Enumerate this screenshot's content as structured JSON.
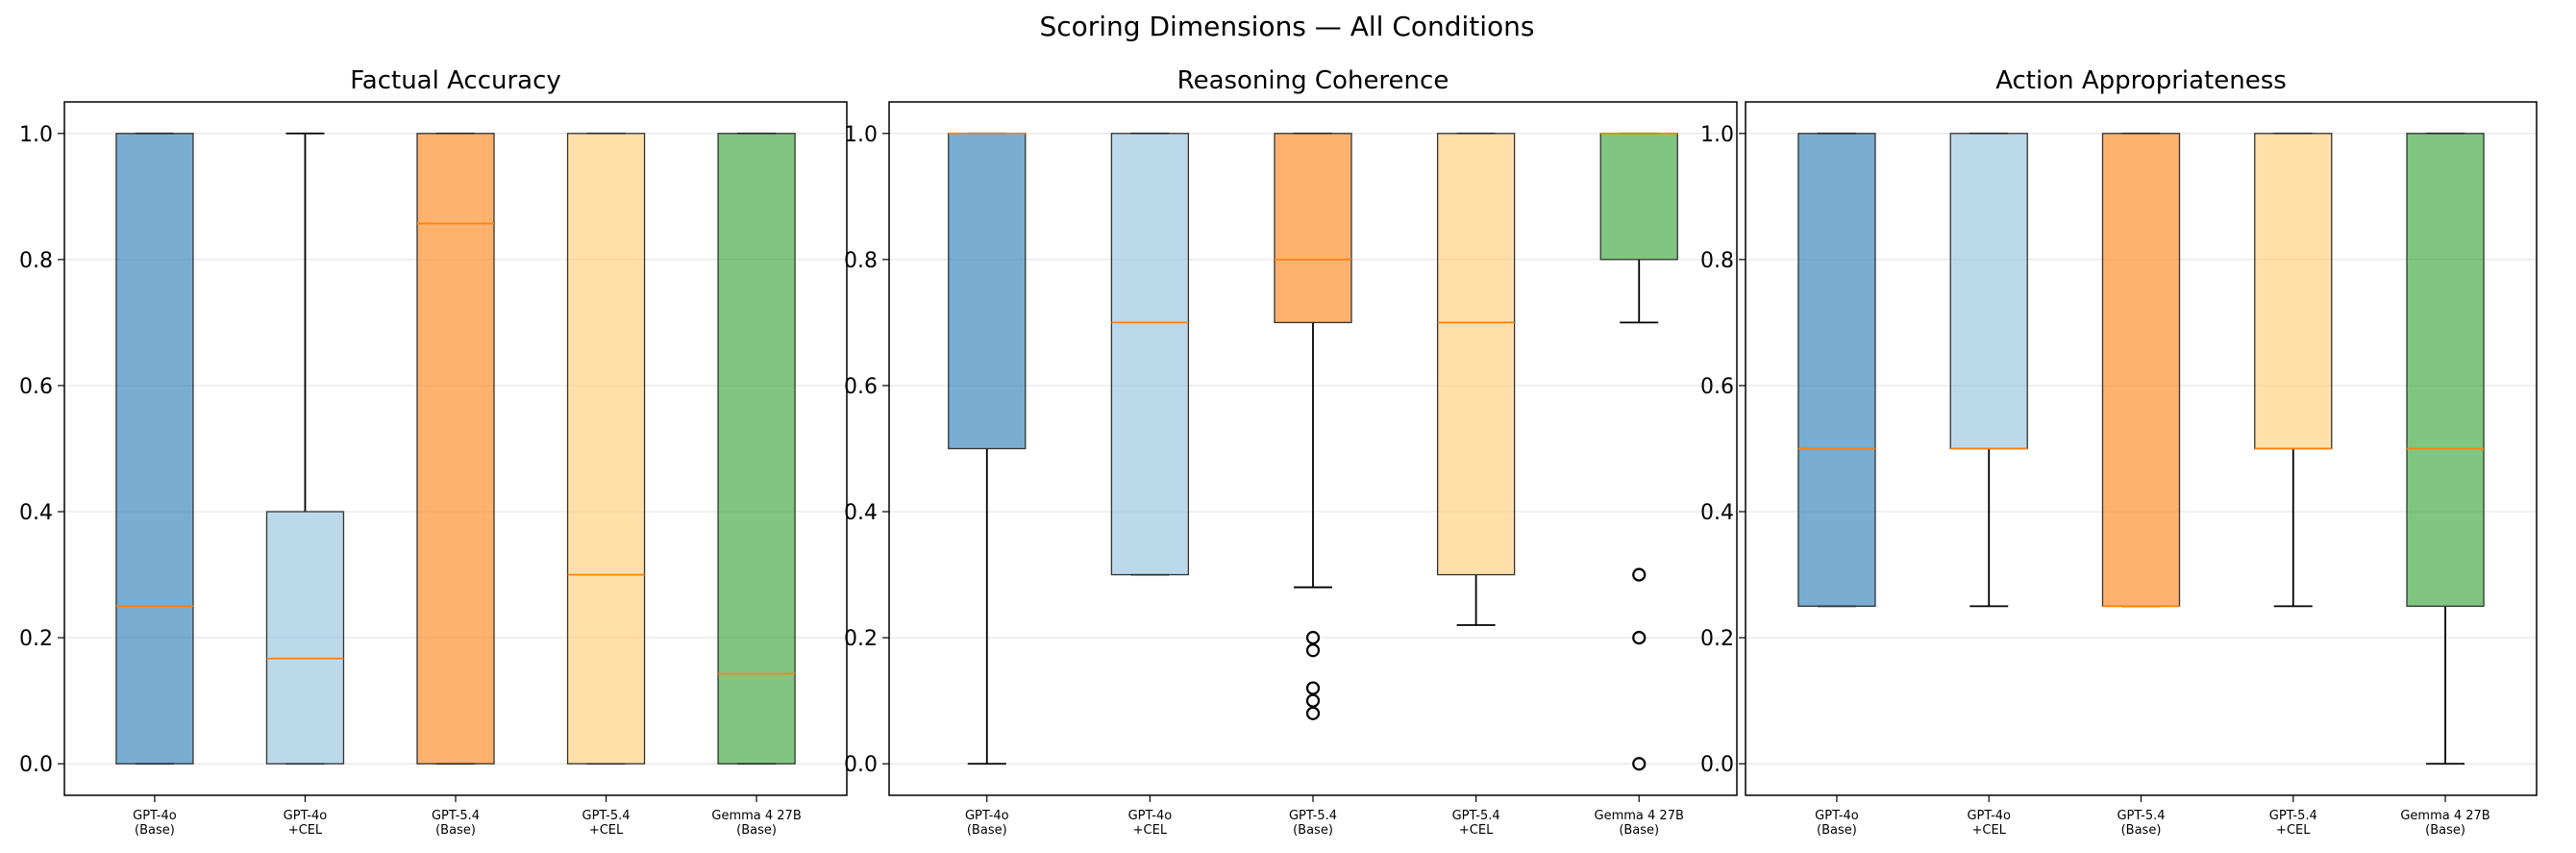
{
  "figure": {
    "title": "Scoring Dimensions — All Conditions"
  },
  "palette": [
    "#1f77b4",
    "#8fbfe0",
    "#ff7f0e",
    "#ffcc70",
    "#2ca02c"
  ],
  "median_color": "#ff7f0e",
  "chart_data": [
    {
      "type": "box",
      "title": "Factual Accuracy",
      "categories": [
        "GPT-4o\n(Base)",
        "GPT-4o\n+CEL",
        "GPT-5.4\n(Base)",
        "GPT-5.4\n+CEL",
        "Gemma 4 27B\n(Base)"
      ],
      "yticks": [
        "0.0",
        "0.2",
        "0.4",
        "0.6",
        "0.8",
        "1.0"
      ],
      "ylim": [
        -0.05,
        1.05
      ],
      "grid": true,
      "boxes": [
        {
          "whislo": 0.0,
          "q1": 0.0,
          "med": 0.25,
          "q3": 1.0,
          "whishi": 1.0,
          "fliers": []
        },
        {
          "whislo": 0.0,
          "q1": 0.0,
          "med": 0.167,
          "q3": 0.4,
          "whishi": 1.0,
          "fliers": []
        },
        {
          "whislo": 0.0,
          "q1": 0.0,
          "med": 0.857,
          "q3": 1.0,
          "whishi": 1.0,
          "fliers": []
        },
        {
          "whislo": 0.0,
          "q1": 0.0,
          "med": 0.3,
          "q3": 1.0,
          "whishi": 1.0,
          "fliers": []
        },
        {
          "whislo": 0.0,
          "q1": 0.0,
          "med": 0.143,
          "q3": 1.0,
          "whishi": 1.0,
          "fliers": []
        }
      ]
    },
    {
      "type": "box",
      "title": "Reasoning Coherence",
      "categories": [
        "GPT-4o\n(Base)",
        "GPT-4o\n+CEL",
        "GPT-5.4\n(Base)",
        "GPT-5.4\n+CEL",
        "Gemma 4 27B\n(Base)"
      ],
      "yticks": [
        "0.0",
        "0.2",
        "0.4",
        "0.6",
        "0.8",
        "1.0"
      ],
      "ylim": [
        -0.05,
        1.05
      ],
      "grid": true,
      "boxes": [
        {
          "whislo": 0.0,
          "q1": 0.5,
          "med": 1.0,
          "q3": 1.0,
          "whishi": 1.0,
          "fliers": []
        },
        {
          "whislo": 0.3,
          "q1": 0.3,
          "med": 0.7,
          "q3": 1.0,
          "whishi": 1.0,
          "fliers": []
        },
        {
          "whislo": 0.28,
          "q1": 0.7,
          "med": 0.8,
          "q3": 1.0,
          "whishi": 1.0,
          "fliers": [
            0.2,
            0.18,
            0.12,
            0.1,
            0.08
          ]
        },
        {
          "whislo": 0.22,
          "q1": 0.3,
          "med": 0.7,
          "q3": 1.0,
          "whishi": 1.0,
          "fliers": []
        },
        {
          "whislo": 0.7,
          "q1": 0.8,
          "med": 1.0,
          "q3": 1.0,
          "whishi": 1.0,
          "fliers": [
            0.3,
            0.2,
            0.0
          ]
        }
      ]
    },
    {
      "type": "box",
      "title": "Action Appropriateness",
      "categories": [
        "GPT-4o\n(Base)",
        "GPT-4o\n+CEL",
        "GPT-5.4\n(Base)",
        "GPT-5.4\n+CEL",
        "Gemma 4 27B\n(Base)"
      ],
      "yticks": [
        "0.0",
        "0.2",
        "0.4",
        "0.6",
        "0.8",
        "1.0"
      ],
      "ylim": [
        -0.05,
        1.05
      ],
      "grid": true,
      "boxes": [
        {
          "whislo": 0.25,
          "q1": 0.25,
          "med": 0.5,
          "q3": 1.0,
          "whishi": 1.0,
          "fliers": []
        },
        {
          "whislo": 0.25,
          "q1": 0.5,
          "med": 0.5,
          "q3": 1.0,
          "whishi": 1.0,
          "fliers": []
        },
        {
          "whislo": 0.25,
          "q1": 0.25,
          "med": 0.25,
          "q3": 1.0,
          "whishi": 1.0,
          "fliers": []
        },
        {
          "whislo": 0.25,
          "q1": 0.5,
          "med": 0.5,
          "q3": 1.0,
          "whishi": 1.0,
          "fliers": []
        },
        {
          "whislo": 0.0,
          "q1": 0.25,
          "med": 0.5,
          "q3": 1.0,
          "whishi": 1.0,
          "fliers": []
        }
      ]
    }
  ]
}
